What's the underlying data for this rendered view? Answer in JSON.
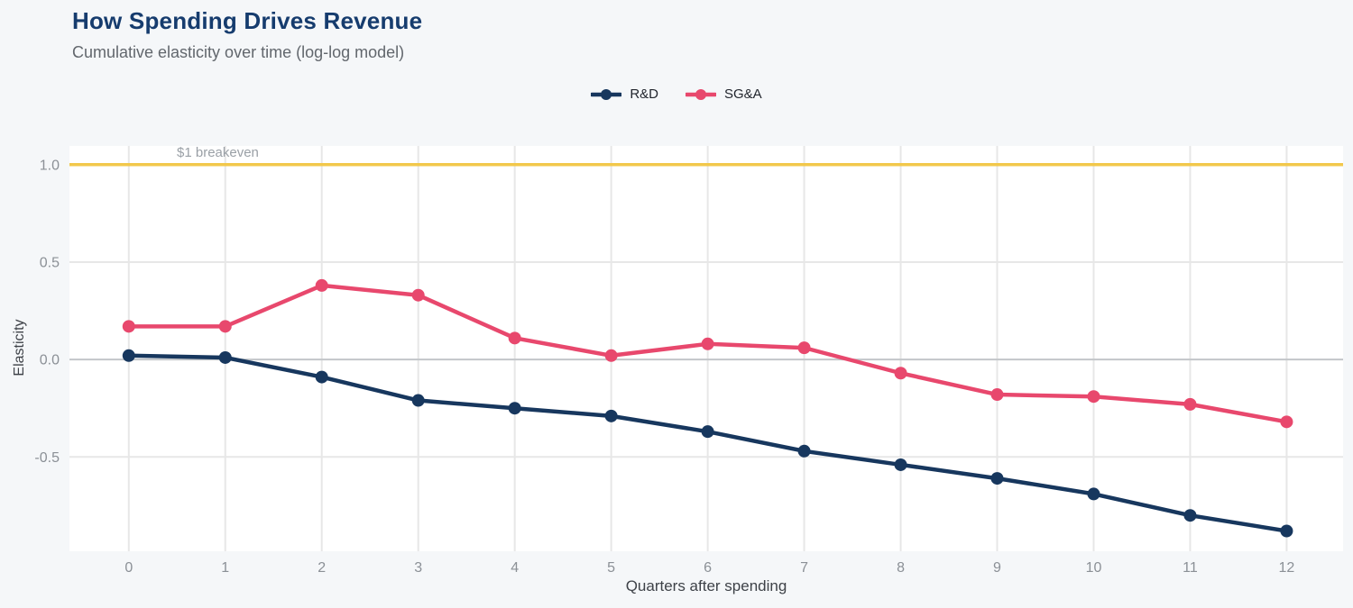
{
  "page": {
    "background": "#f5f7f9"
  },
  "header": {
    "title": "How Spending Drives Revenue",
    "subtitle": "Cumulative elasticity over time (log-log model)"
  },
  "chart_data": {
    "type": "line",
    "title": "How Spending Drives Revenue",
    "subtitle": "Cumulative elasticity over time (log-log model)",
    "xlabel": "Quarters after spending",
    "ylabel": "Elasticity",
    "x": [
      0,
      1,
      2,
      3,
      4,
      5,
      6,
      7,
      8,
      9,
      10,
      11,
      12
    ],
    "series": [
      {
        "name": "R&D",
        "color": "#17375e",
        "values": [
          0.02,
          0.01,
          -0.09,
          -0.21,
          -0.25,
          -0.29,
          -0.37,
          -0.47,
          -0.54,
          -0.61,
          -0.69,
          -0.8,
          -0.88
        ]
      },
      {
        "name": "SG&A",
        "color": "#e8486d",
        "values": [
          0.17,
          0.17,
          0.38,
          0.33,
          0.11,
          0.02,
          0.08,
          0.06,
          -0.07,
          -0.18,
          -0.19,
          -0.23,
          -0.32
        ]
      }
    ],
    "annotation": {
      "label": "$1 breakeven",
      "y": 1.0,
      "line_color": "#f2c84b",
      "label_color": "#9aa0a6"
    },
    "x_ticks": [
      0,
      1,
      2,
      3,
      4,
      5,
      6,
      7,
      8,
      9,
      10,
      11,
      12
    ],
    "x_tick_labels": [
      "0",
      "1",
      "2",
      "3",
      "4",
      "5",
      "6",
      "7",
      "8",
      "9",
      "10",
      "11",
      "12"
    ],
    "y_ticks": [
      1.0,
      0.5,
      0.0,
      -0.5
    ],
    "y_tick_labels": [
      "1.0",
      "0.5",
      "0.0",
      "-0.5"
    ],
    "xlim": [
      -0.615,
      12.585
    ],
    "ylim": [
      -0.984,
      1.096
    ],
    "grid": true,
    "grid_color": "#e7e7e7",
    "zero_line_color": "#c3c6c9",
    "plot_background": "#ffffff",
    "tick_label_color": "#8b9096",
    "legend_position": "top-center"
  }
}
